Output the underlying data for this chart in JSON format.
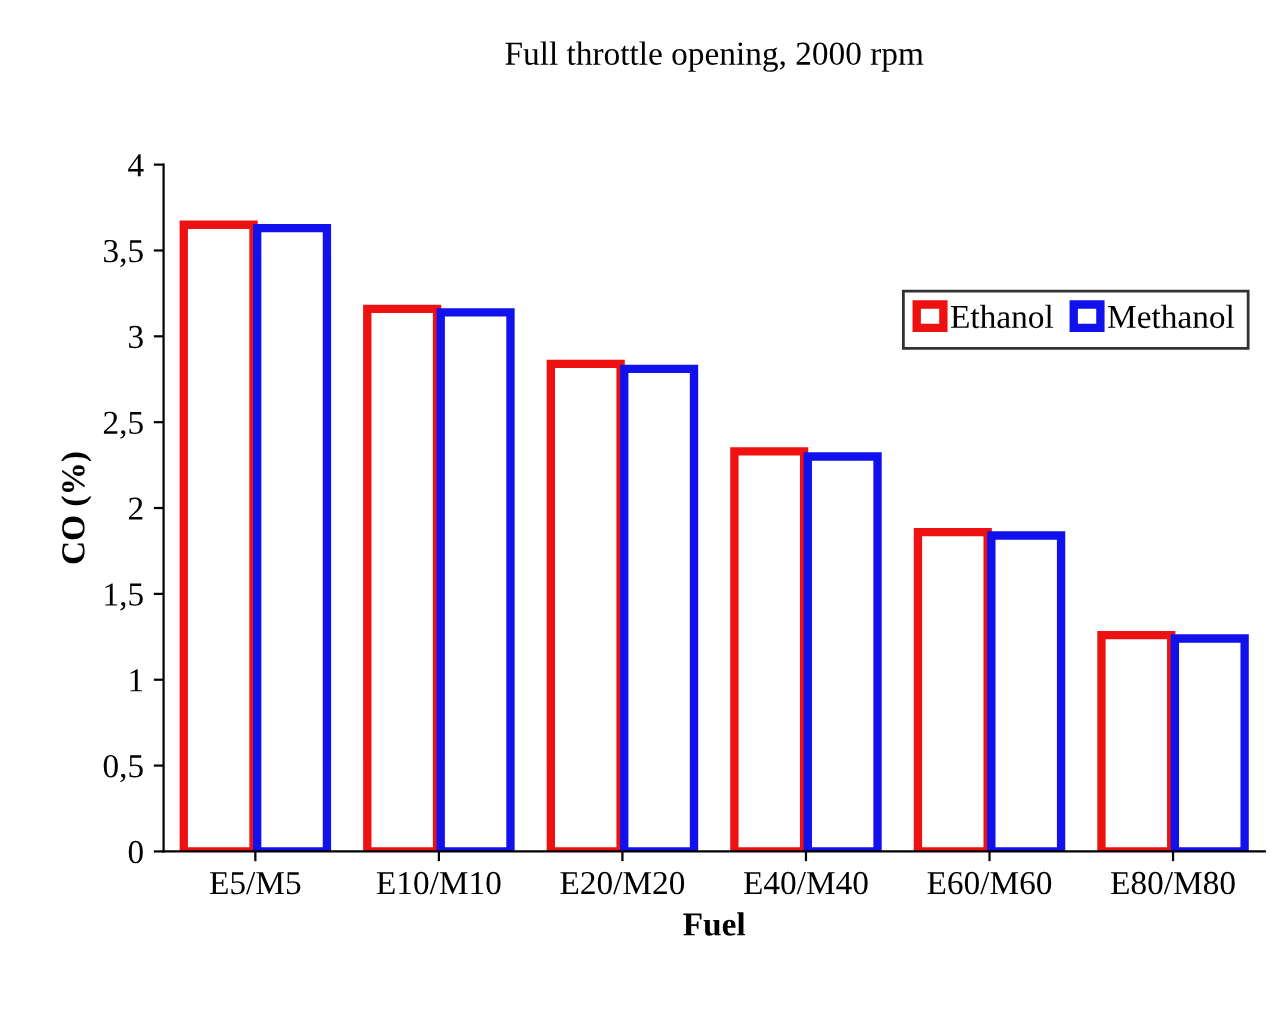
{
  "chart_data": {
    "type": "bar",
    "title": "Full throttle opening, 2000 rpm",
    "xlabel": "Fuel",
    "ylabel": "CO (%)",
    "categories": [
      "E5/M5",
      "E10/M10",
      "E20/M20",
      "E40/M40",
      "E60/M60",
      "E80/M80"
    ],
    "series": [
      {
        "name": "Ethanol",
        "color": "#ee1111",
        "values": [
          3.65,
          3.16,
          2.84,
          2.33,
          1.86,
          1.26
        ]
      },
      {
        "name": "Methanol",
        "color": "#1111ee",
        "values": [
          3.63,
          3.14,
          2.81,
          2.3,
          1.84,
          1.24
        ]
      }
    ],
    "ylim": [
      0,
      4
    ],
    "yticks": [
      0,
      {
        "value": 0.5,
        "label": "0,5"
      },
      1,
      {
        "value": 1.5,
        "label": "1,5"
      },
      2,
      {
        "value": 2.5,
        "label": "2,5"
      },
      3,
      {
        "value": 3.5,
        "label": "3,5"
      },
      4
    ],
    "grid": false,
    "legend": "top right"
  }
}
